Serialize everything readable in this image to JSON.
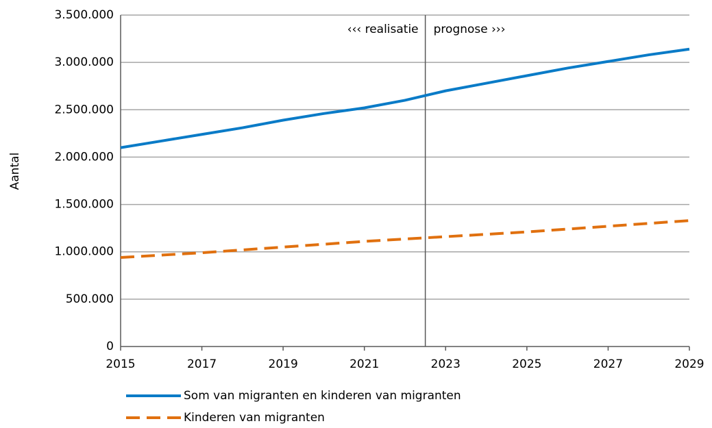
{
  "chart_data": {
    "type": "line",
    "y_label": "Aantal",
    "x": [
      2015,
      2016,
      2017,
      2018,
      2019,
      2020,
      2021,
      2022,
      2023,
      2024,
      2025,
      2026,
      2027,
      2028,
      2029
    ],
    "series": [
      {
        "name": "Som van migranten en kinderen van migranten",
        "color": "#0a7bc7",
        "dash": false,
        "values": [
          2100000,
          2170000,
          2240000,
          2310000,
          2390000,
          2460000,
          2520000,
          2600000,
          2700000,
          2780000,
          2860000,
          2940000,
          3010000,
          3080000,
          3140000
        ]
      },
      {
        "name": "Kinderen van migranten",
        "color": "#e0700f",
        "dash": true,
        "values": [
          940000,
          965000,
          990000,
          1020000,
          1050000,
          1080000,
          1110000,
          1135000,
          1160000,
          1185000,
          1210000,
          1240000,
          1270000,
          1300000,
          1330000
        ]
      }
    ],
    "annotations": [
      {
        "x": 2022.5,
        "left": "‹‹‹ realisatie",
        "right": "prognose ›››"
      }
    ],
    "xlim": [
      2015,
      2029
    ],
    "xticks": [
      2015,
      2017,
      2019,
      2021,
      2023,
      2025,
      2027,
      2029
    ],
    "ylim": [
      0,
      3500000
    ],
    "yticks": [
      0,
      {
        "value": 500000,
        "label": "500.000"
      },
      {
        "value": 1000000,
        "label": "1.000.000"
      },
      {
        "value": 1500000,
        "label": "1.500.000"
      },
      {
        "value": 2000000,
        "label": "2.000.000"
      },
      {
        "value": 2500000,
        "label": "2.500.000"
      },
      {
        "value": 3000000,
        "label": "3.000.000"
      },
      {
        "value": 3500000,
        "label": "3.500.000"
      }
    ],
    "grid": true
  }
}
